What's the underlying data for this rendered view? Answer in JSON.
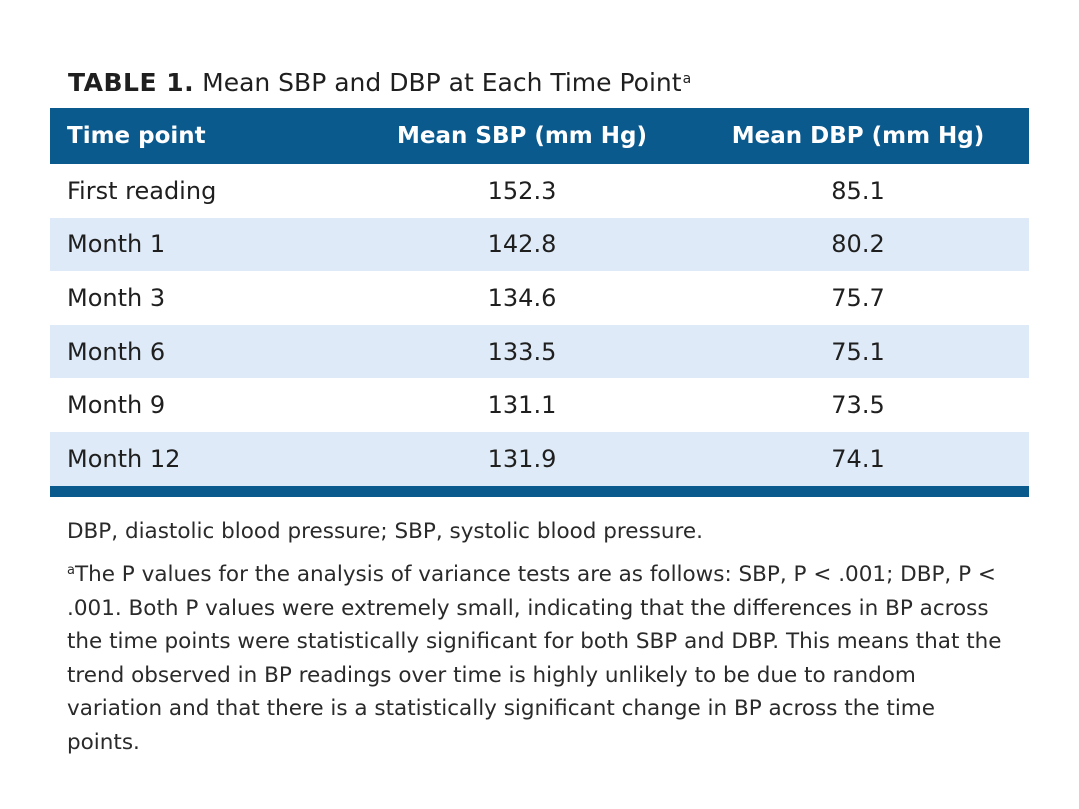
{
  "title": {
    "number": "TABLE 1.",
    "text": "Mean SBP and DBP at Each Time Point",
    "footnote_marker": "a"
  },
  "table": {
    "headers": [
      "Time point",
      "Mean SBP (mm Hg)",
      "Mean DBP (mm Hg)"
    ],
    "rows": [
      [
        "First reading",
        "152.3",
        "85.1"
      ],
      [
        "Month 1",
        "142.8",
        "80.2"
      ],
      [
        "Month 3",
        "134.6",
        "75.7"
      ],
      [
        "Month 6",
        "133.5",
        "75.1"
      ],
      [
        "Month 9",
        "131.1",
        "73.5"
      ],
      [
        "Month 12",
        "131.9",
        "74.1"
      ]
    ]
  },
  "notes": {
    "abbreviations": "DBP, diastolic blood pressure; SBP, systolic blood pressure.",
    "footnote_marker": "a",
    "footnote": "The P values for the analysis of variance tests are as follows: SBP, P < .001; DBP, P < .001. Both P values were extremely small, indicating that the differences in BP across the time points were statistically significant for both SBP and DBP. This means that the trend observed in BP readings over time is highly unlikely to be due to random variation and that there is a statistically significant change in BP across the time points."
  },
  "colors": {
    "header_bg": "#0b5a8e",
    "stripe_bg": "#deeaf7"
  }
}
